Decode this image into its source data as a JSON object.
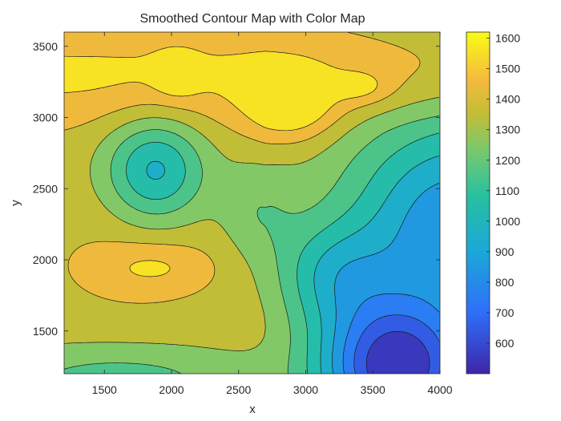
{
  "chart_data": {
    "type": "contourf",
    "title": "Smoothed Contour Map with Color Map",
    "xlabel": "x",
    "ylabel": "y",
    "xlim": [
      1200,
      4000
    ],
    "ylim": [
      1200,
      3600
    ],
    "xticks": [
      1500,
      2000,
      2500,
      3000,
      3500,
      4000
    ],
    "yticks": [
      1500,
      2000,
      2500,
      3000,
      3500
    ],
    "colorbar": {
      "range": [
        500,
        1620
      ],
      "ticks": [
        600,
        700,
        800,
        900,
        1000,
        1100,
        1200,
        1300,
        1400,
        1500,
        1600
      ],
      "colormap": "parula"
    },
    "contour_levels": [
      600,
      700,
      800,
      900,
      1000,
      1100,
      1200,
      1300,
      1400,
      1500
    ],
    "grid": false,
    "features": [
      {
        "kind": "peak",
        "x": 2900,
        "y": 3080,
        "value": 1620
      },
      {
        "kind": "peak",
        "x": 2040,
        "y": 3300,
        "value": 1560
      },
      {
        "kind": "peak",
        "x": 3420,
        "y": 3210,
        "value": 1540
      },
      {
        "kind": "peak",
        "x": 1880,
        "y": 1940,
        "value": 1520
      },
      {
        "kind": "basin",
        "x": 1880,
        "y": 2630,
        "value": 1020
      },
      {
        "kind": "basin",
        "x": 3580,
        "y": 1280,
        "value": 560
      },
      {
        "kind": "low-region",
        "x": 4000,
        "y": 2200,
        "value": 950
      }
    ]
  }
}
